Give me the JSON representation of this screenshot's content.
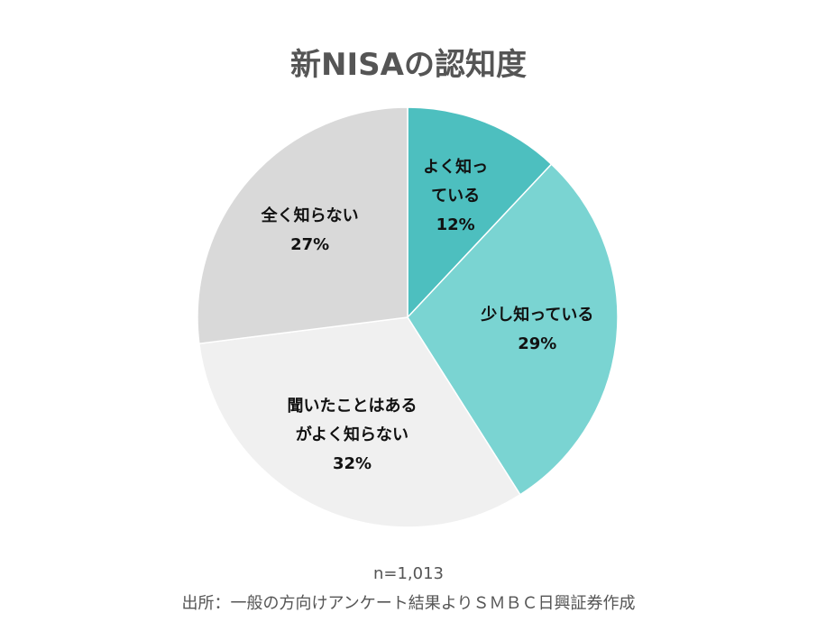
{
  "chart_data": {
    "type": "pie",
    "title": "新NISAの認知度",
    "categories": [
      "よく知っ\nている",
      "少し知っている",
      "聞いたことはある\nがよく知らない",
      "全く知らない"
    ],
    "values": [
      12,
      29,
      32,
      27
    ],
    "value_labels": [
      "12%",
      "29%",
      "32%",
      "27%"
    ],
    "colors": [
      "#4dbfbf",
      "#7ad4d2",
      "#f0f0f0",
      "#d9d9d9"
    ],
    "note": "n=1,013",
    "source": "出所：一般の方向けアンケート結果よりＳＭＢＣ日興証券作成"
  }
}
